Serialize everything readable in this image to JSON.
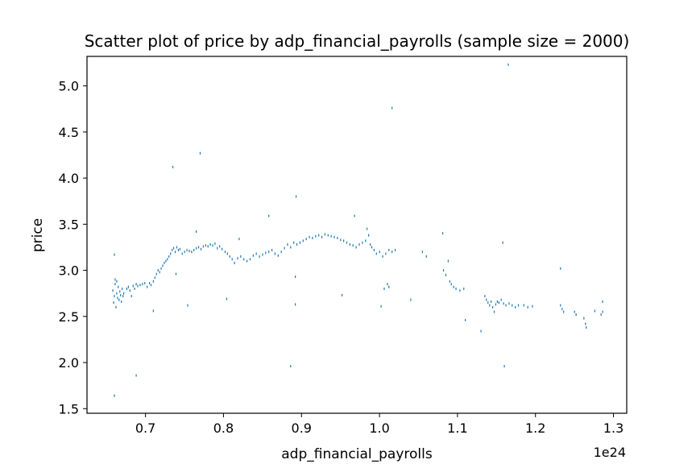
{
  "chart_data": {
    "type": "scatter",
    "title": "Scatter plot of price by adp_financial_payrolls (sample size = 2000)",
    "xlabel": "adp_financial_payrolls",
    "ylabel": "price",
    "x_offset_label": "1e24",
    "xlim": [
      0.625,
      1.317
    ],
    "ylim": [
      1.45,
      5.32
    ],
    "x_ticks": [
      0.7,
      0.8,
      0.9,
      1.0,
      1.1,
      1.2,
      1.3
    ],
    "x_tick_labels": [
      "0.7",
      "0.8",
      "0.9",
      "1.0",
      "1.1",
      "1.2",
      "1.3"
    ],
    "y_ticks": [
      1.5,
      2.0,
      2.5,
      3.0,
      3.5,
      4.0,
      4.5,
      5.0
    ],
    "y_tick_labels": [
      "1.5",
      "2.0",
      "2.5",
      "3.0",
      "3.5",
      "4.0",
      "4.5",
      "5.0"
    ],
    "grid": false,
    "marker_color": "#1f77b4",
    "points": [
      [
        0.658,
        2.78
      ],
      [
        0.659,
        2.65
      ],
      [
        0.66,
        2.72
      ],
      [
        0.661,
        2.85
      ],
      [
        0.662,
        2.6
      ],
      [
        0.663,
        2.75
      ],
      [
        0.664,
        2.7
      ],
      [
        0.665,
        2.82
      ],
      [
        0.666,
        2.68
      ],
      [
        0.667,
        2.77
      ],
      [
        0.668,
        2.73
      ],
      [
        0.669,
        2.66
      ],
      [
        0.67,
        2.8
      ],
      [
        0.671,
        2.72
      ],
      [
        0.672,
        2.75
      ],
      [
        0.66,
        3.17
      ],
      [
        0.661,
        2.9
      ],
      [
        0.663,
        2.88
      ],
      [
        0.676,
        2.8
      ],
      [
        0.678,
        2.82
      ],
      [
        0.68,
        2.78
      ],
      [
        0.682,
        2.72
      ],
      [
        0.684,
        2.83
      ],
      [
        0.686,
        2.8
      ],
      [
        0.688,
        2.85
      ],
      [
        0.69,
        2.83
      ],
      [
        0.693,
        2.84
      ],
      [
        0.696,
        2.85
      ],
      [
        0.699,
        2.86
      ],
      [
        0.702,
        2.82
      ],
      [
        0.705,
        2.86
      ],
      [
        0.707,
        2.84
      ],
      [
        0.71,
        2.88
      ],
      [
        0.712,
        2.92
      ],
      [
        0.714,
        2.96
      ],
      [
        0.716,
        3.0
      ],
      [
        0.718,
        2.98
      ],
      [
        0.72,
        3.02
      ],
      [
        0.722,
        3.05
      ],
      [
        0.724,
        3.08
      ],
      [
        0.726,
        3.1
      ],
      [
        0.728,
        3.12
      ],
      [
        0.73,
        3.15
      ],
      [
        0.732,
        3.18
      ],
      [
        0.734,
        3.22
      ],
      [
        0.736,
        3.24
      ],
      [
        0.738,
        3.2
      ],
      [
        0.74,
        3.25
      ],
      [
        0.742,
        3.22
      ],
      [
        0.744,
        3.23
      ],
      [
        0.747,
        3.18
      ],
      [
        0.75,
        3.2
      ],
      [
        0.753,
        3.22
      ],
      [
        0.756,
        3.21
      ],
      [
        0.759,
        3.2
      ],
      [
        0.762,
        3.22
      ],
      [
        0.765,
        3.24
      ],
      [
        0.768,
        3.25
      ],
      [
        0.771,
        3.23
      ],
      [
        0.774,
        3.26
      ],
      [
        0.777,
        3.27
      ],
      [
        0.78,
        3.26
      ],
      [
        0.783,
        3.28
      ],
      [
        0.786,
        3.27
      ],
      [
        0.789,
        3.29
      ],
      [
        0.792,
        3.24
      ],
      [
        0.795,
        3.26
      ],
      [
        0.798,
        3.23
      ],
      [
        0.802,
        3.2
      ],
      [
        0.805,
        3.18
      ],
      [
        0.808,
        3.15
      ],
      [
        0.811,
        3.12
      ],
      [
        0.814,
        3.08
      ],
      [
        0.818,
        3.13
      ],
      [
        0.822,
        3.15
      ],
      [
        0.826,
        3.12
      ],
      [
        0.83,
        3.1
      ],
      [
        0.834,
        3.12
      ],
      [
        0.838,
        3.16
      ],
      [
        0.842,
        3.18
      ],
      [
        0.846,
        3.15
      ],
      [
        0.85,
        3.17
      ],
      [
        0.854,
        3.19
      ],
      [
        0.858,
        3.2
      ],
      [
        0.862,
        3.22
      ],
      [
        0.866,
        3.18
      ],
      [
        0.87,
        3.16
      ],
      [
        0.874,
        3.2
      ],
      [
        0.878,
        3.24
      ],
      [
        0.882,
        3.28
      ],
      [
        0.886,
        3.25
      ],
      [
        0.89,
        3.3
      ],
      [
        0.894,
        3.28
      ],
      [
        0.898,
        3.3
      ],
      [
        0.902,
        3.32
      ],
      [
        0.906,
        3.34
      ],
      [
        0.91,
        3.36
      ],
      [
        0.914,
        3.35
      ],
      [
        0.918,
        3.37
      ],
      [
        0.922,
        3.38
      ],
      [
        0.926,
        3.36
      ],
      [
        0.93,
        3.39
      ],
      [
        0.934,
        3.38
      ],
      [
        0.938,
        3.37
      ],
      [
        0.942,
        3.36
      ],
      [
        0.946,
        3.35
      ],
      [
        0.95,
        3.33
      ],
      [
        0.954,
        3.32
      ],
      [
        0.958,
        3.3
      ],
      [
        0.962,
        3.28
      ],
      [
        0.966,
        3.27
      ],
      [
        0.97,
        3.25
      ],
      [
        0.974,
        3.28
      ],
      [
        0.978,
        3.3
      ],
      [
        0.982,
        3.32
      ],
      [
        0.984,
        3.45
      ],
      [
        0.986,
        3.38
      ],
      [
        0.988,
        3.28
      ],
      [
        0.99,
        3.25
      ],
      [
        0.993,
        3.22
      ],
      [
        0.996,
        3.18
      ],
      [
        1.0,
        3.2
      ],
      [
        1.004,
        3.15
      ],
      [
        1.008,
        3.18
      ],
      [
        1.012,
        3.22
      ],
      [
        1.016,
        3.2
      ],
      [
        1.02,
        3.22
      ],
      [
        1.006,
        2.8
      ],
      [
        1.01,
        2.85
      ],
      [
        1.012,
        2.82
      ],
      [
        1.055,
        3.2
      ],
      [
        1.06,
        3.15
      ],
      [
        1.082,
        3.0
      ],
      [
        1.085,
        2.95
      ],
      [
        1.088,
        3.1
      ],
      [
        1.09,
        2.88
      ],
      [
        1.092,
        2.85
      ],
      [
        1.095,
        2.82
      ],
      [
        1.098,
        2.8
      ],
      [
        1.103,
        2.78
      ],
      [
        1.108,
        2.8
      ],
      [
        1.135,
        2.72
      ],
      [
        1.137,
        2.68
      ],
      [
        1.139,
        2.65
      ],
      [
        1.141,
        2.62
      ],
      [
        1.143,
        2.66
      ],
      [
        1.145,
        2.6
      ],
      [
        1.147,
        2.55
      ],
      [
        1.149,
        2.63
      ],
      [
        1.151,
        2.66
      ],
      [
        1.153,
        2.65
      ],
      [
        1.156,
        2.68
      ],
      [
        1.159,
        2.64
      ],
      [
        1.162,
        2.62
      ],
      [
        1.166,
        2.64
      ],
      [
        1.17,
        2.62
      ],
      [
        1.174,
        2.6
      ],
      [
        1.178,
        2.62
      ],
      [
        1.185,
        2.62
      ],
      [
        1.19,
        2.6
      ],
      [
        1.196,
        2.61
      ],
      [
        1.232,
        2.62
      ],
      [
        1.234,
        2.58
      ],
      [
        1.236,
        2.55
      ],
      [
        1.25,
        2.55
      ],
      [
        1.252,
        2.52
      ],
      [
        1.262,
        2.48
      ],
      [
        1.264,
        2.42
      ],
      [
        1.265,
        2.38
      ],
      [
        1.276,
        2.56
      ],
      [
        1.284,
        2.52
      ],
      [
        1.286,
        2.55
      ],
      [
        1.286,
        2.66
      ],
      [
        0.71,
        2.56
      ],
      [
        0.754,
        2.62
      ],
      [
        0.804,
        2.69
      ],
      [
        0.892,
        2.63
      ],
      [
        0.952,
        2.73
      ],
      [
        1.002,
        2.61
      ],
      [
        1.04,
        2.68
      ],
      [
        1.13,
        2.34
      ],
      [
        1.11,
        2.46
      ],
      [
        0.735,
        4.12
      ],
      [
        0.77,
        4.27
      ],
      [
        0.765,
        3.42
      ],
      [
        0.858,
        3.59
      ],
      [
        0.893,
        3.8
      ],
      [
        0.968,
        3.59
      ],
      [
        1.016,
        4.76
      ],
      [
        1.165,
        5.23
      ],
      [
        1.081,
        3.4
      ],
      [
        1.158,
        3.3
      ],
      [
        1.232,
        3.02
      ],
      [
        0.66,
        1.64
      ],
      [
        0.688,
        1.86
      ],
      [
        0.886,
        1.96
      ],
      [
        1.16,
        1.96
      ],
      [
        0.739,
        2.96
      ],
      [
        0.82,
        3.34
      ],
      [
        0.892,
        2.93
      ]
    ]
  }
}
